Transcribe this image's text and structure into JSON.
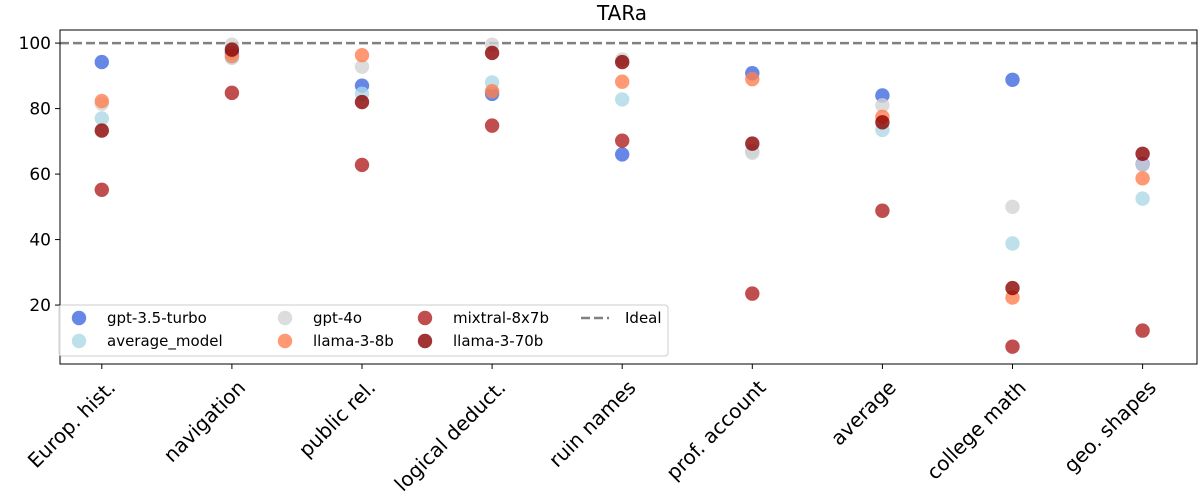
{
  "chart_data": {
    "type": "scatter",
    "title": "TARa",
    "xlabel": "",
    "ylabel": "",
    "categories": [
      "Europ. hist.",
      "navigation",
      "public rel.",
      "logical deduct.",
      "ruin names",
      "prof. account",
      "average",
      "college math",
      "geo. shapes"
    ],
    "ylim": [
      2,
      104
    ],
    "yticks": [
      20,
      40,
      60,
      80,
      100
    ],
    "grid": false,
    "legend_position": "lower-left",
    "reference_line": {
      "name": "Ideal",
      "value": 100,
      "color": "#808080",
      "style": "dashed"
    },
    "series": [
      {
        "name": "gpt-3.5-turbo",
        "color": "#4169e1",
        "values": [
          94.2,
          97.0,
          87.0,
          84.5,
          66.0,
          90.8,
          84.0,
          88.8,
          63.0
        ]
      },
      {
        "name": "average_model",
        "color": "#add8e6",
        "values": [
          77.0,
          95.5,
          84.5,
          88.0,
          82.8,
          67.0,
          73.5,
          38.8,
          52.5
        ]
      },
      {
        "name": "gpt-4o",
        "color": "#d3d3d3",
        "values": [
          81.5,
          99.5,
          92.8,
          99.5,
          95.0,
          66.5,
          81.0,
          50.0,
          62.8
        ]
      },
      {
        "name": "llama-3-8b",
        "color": "#ff7f50",
        "values": [
          82.3,
          96.0,
          96.3,
          85.3,
          88.2,
          89.0,
          77.5,
          22.3,
          58.7
        ]
      },
      {
        "name": "mixtral-8x7b",
        "color": "#b22222",
        "values": [
          55.2,
          84.8,
          62.8,
          74.8,
          70.2,
          23.5,
          48.8,
          7.3,
          12.2
        ]
      },
      {
        "name": "llama-3-70b",
        "color": "#8b0000",
        "values": [
          73.3,
          98.0,
          82.0,
          97.0,
          94.2,
          69.3,
          75.8,
          25.2,
          66.2
        ]
      }
    ]
  }
}
